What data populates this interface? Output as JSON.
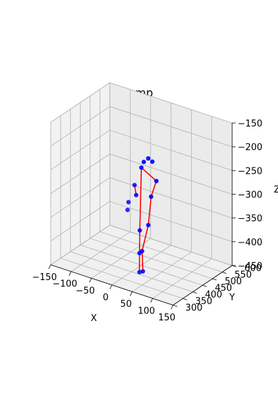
{
  "chart_data": {
    "type": "scatter",
    "title": "Jump",
    "xlabel": "X",
    "ylabel": "Y",
    "zlabel": "Z",
    "projection": "3d",
    "grid": true,
    "xlim": [
      -150,
      150
    ],
    "ylim": [
      300,
      600
    ],
    "zlim": [
      -450,
      -150
    ],
    "xticks": [
      "−150",
      "−100",
      "−50",
      "0",
      "50",
      "100",
      "150"
    ],
    "yticks": [
      "300",
      "350",
      "400",
      "450",
      "500",
      "550",
      "600"
    ],
    "zticks": [
      "−150",
      "−200",
      "−250",
      "−300",
      "−350",
      "−400",
      "−450"
    ],
    "series": [
      {
        "marker_color": "#0000ff",
        "line_color": "#ff0000",
        "points": [
          {
            "x": 8,
            "y": 468,
            "z": -228
          },
          {
            "x": 18,
            "y": 468,
            "z": -232
          },
          {
            "x": 0,
            "y": 462,
            "z": -236
          },
          {
            "x": -4,
            "y": 458,
            "z": -248
          },
          {
            "x": 28,
            "y": 468,
            "z": -270
          },
          {
            "x": -12,
            "y": 440,
            "z": -282
          },
          {
            "x": 18,
            "y": 462,
            "z": -304
          },
          {
            "x": -8,
            "y": 440,
            "z": -302
          },
          {
            "x": -22,
            "y": 430,
            "z": -318
          },
          {
            "x": -22,
            "y": 425,
            "z": -333
          },
          {
            "x": 12,
            "y": 460,
            "z": -365
          },
          {
            "x": -4,
            "y": 450,
            "z": -378
          },
          {
            "x": 4,
            "y": 445,
            "z": -418
          },
          {
            "x": 0,
            "y": 440,
            "z": -422
          },
          {
            "x": 6,
            "y": 445,
            "z": -460
          },
          {
            "x": 0,
            "y": 440,
            "z": -462
          }
        ],
        "edges": [
          [
            4,
            6
          ],
          [
            6,
            10
          ],
          [
            10,
            12
          ],
          [
            12,
            14
          ],
          [
            4,
            3
          ],
          [
            3,
            11
          ],
          [
            11,
            13
          ],
          [
            13,
            15
          ],
          [
            5,
            7
          ]
        ]
      }
    ]
  }
}
